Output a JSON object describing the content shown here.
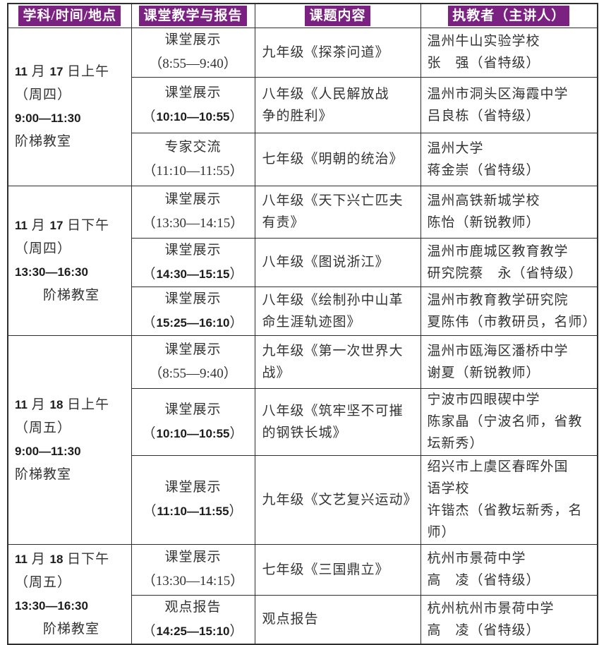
{
  "colors": {
    "header_bg": "#7B2182",
    "header_text": "#FFFFFF"
  },
  "header": {
    "columns": [
      "学科/时间/地点",
      "课堂教学与报告",
      "课题内容",
      "执教者（主讲人）"
    ]
  },
  "groups": [
    {
      "session_block": [
        "11 月 17 日上午",
        "（周四）",
        "9:00—11:30",
        "阶梯教室"
      ],
      "rows": [
        {
          "activity": "课堂展示",
          "time": "（8:55—9:40）",
          "time_bold": false,
          "topic": [
            "九年级《探茶问道》"
          ],
          "instructor": [
            "温州牛山实验学校",
            "张　强（省特级）"
          ]
        },
        {
          "activity": "课堂展示",
          "time": "（10:10—10:55）",
          "time_bold": true,
          "topic": [
            "八年级《人民解放战",
            "争的胜利》"
          ],
          "instructor": [
            "温州市洞头区海霞中学",
            "吕良栋（省特级）"
          ]
        },
        {
          "activity": "专家交流",
          "time": "（11:10—11:55）",
          "time_bold": false,
          "topic": [
            "七年级《明朝的统治》"
          ],
          "instructor": [
            "温州大学",
            "蒋金崇（省特级）"
          ]
        }
      ]
    },
    {
      "session_block": [
        "11 月 17 日下午",
        "（周四）",
        "13:30—16:30",
        "　　阶梯教室"
      ],
      "rows": [
        {
          "activity": "课堂展示",
          "time": "（13:30—14:15）",
          "time_bold": false,
          "topic": [
            "八年级《天下兴亡匹夫",
            "有责》"
          ],
          "instructor": [
            "温州高铁新城学校",
            "陈怡（新锐教师）"
          ]
        },
        {
          "activity": "课堂展示",
          "time": "（14:30—15:15）",
          "time_bold": true,
          "topic": [
            "八年级《图说浙江》"
          ],
          "instructor": [
            "温州市鹿城区教育教学",
            "研究院蔡　永（省特级）"
          ]
        },
        {
          "activity": "课堂展示",
          "time": "（15:25—16:10）",
          "time_bold": true,
          "topic": [
            "八年级《绘制孙中山革",
            "命生涯轨迹图》"
          ],
          "instructor": [
            "温州市教育教学研究院",
            "夏陈伟（市教研员，名师）"
          ]
        }
      ]
    },
    {
      "session_block": [
        "11 月 18 日上午",
        "（周五）",
        "9:00—11:30",
        "阶梯教室"
      ],
      "rows": [
        {
          "activity": "课堂展示",
          "time": "（8:55—9:40）",
          "time_bold": false,
          "topic": [
            "九年级《第一次世界大",
            "战》"
          ],
          "instructor": [
            "温州市瓯海区潘桥中学",
            "谢夏（新锐教师）"
          ]
        },
        {
          "activity": "课堂展示",
          "time": "（10:10—10:55）",
          "time_bold": true,
          "topic": [
            "八年级《筑牢坚不可摧",
            "的钢铁长城》"
          ],
          "instructor": [
            "宁波市四眼碶中学",
            "陈家晶（宁波名师，省教",
            "坛新秀）"
          ]
        },
        {
          "activity": "课堂展示",
          "time": "（11:10—11:55）",
          "time_bold": true,
          "topic": [
            "九年级《文艺复兴运动》"
          ],
          "instructor": [
            "绍兴市上虞区春晖外国",
            "语学校",
            "许锴杰（省教坛新秀，名",
            "师）"
          ]
        }
      ]
    },
    {
      "session_block": [
        "11 月 18 日下午",
        "（周五）",
        "13:30—16:30",
        "　　阶梯教室"
      ],
      "rows": [
        {
          "activity": "课堂展示",
          "time": "（13:30—14:15）",
          "time_bold": false,
          "topic": [
            "七年级《三国鼎立》"
          ],
          "instructor": [
            "杭州市景荷中学",
            "高　凌（省特级）"
          ]
        },
        {
          "activity": "观点报告",
          "time": "（14:25—15:10）",
          "time_bold": true,
          "topic": [
            "观点报告"
          ],
          "instructor": [
            "杭州杭州市景荷中学",
            "高　凌（省特级）"
          ]
        }
      ]
    }
  ]
}
